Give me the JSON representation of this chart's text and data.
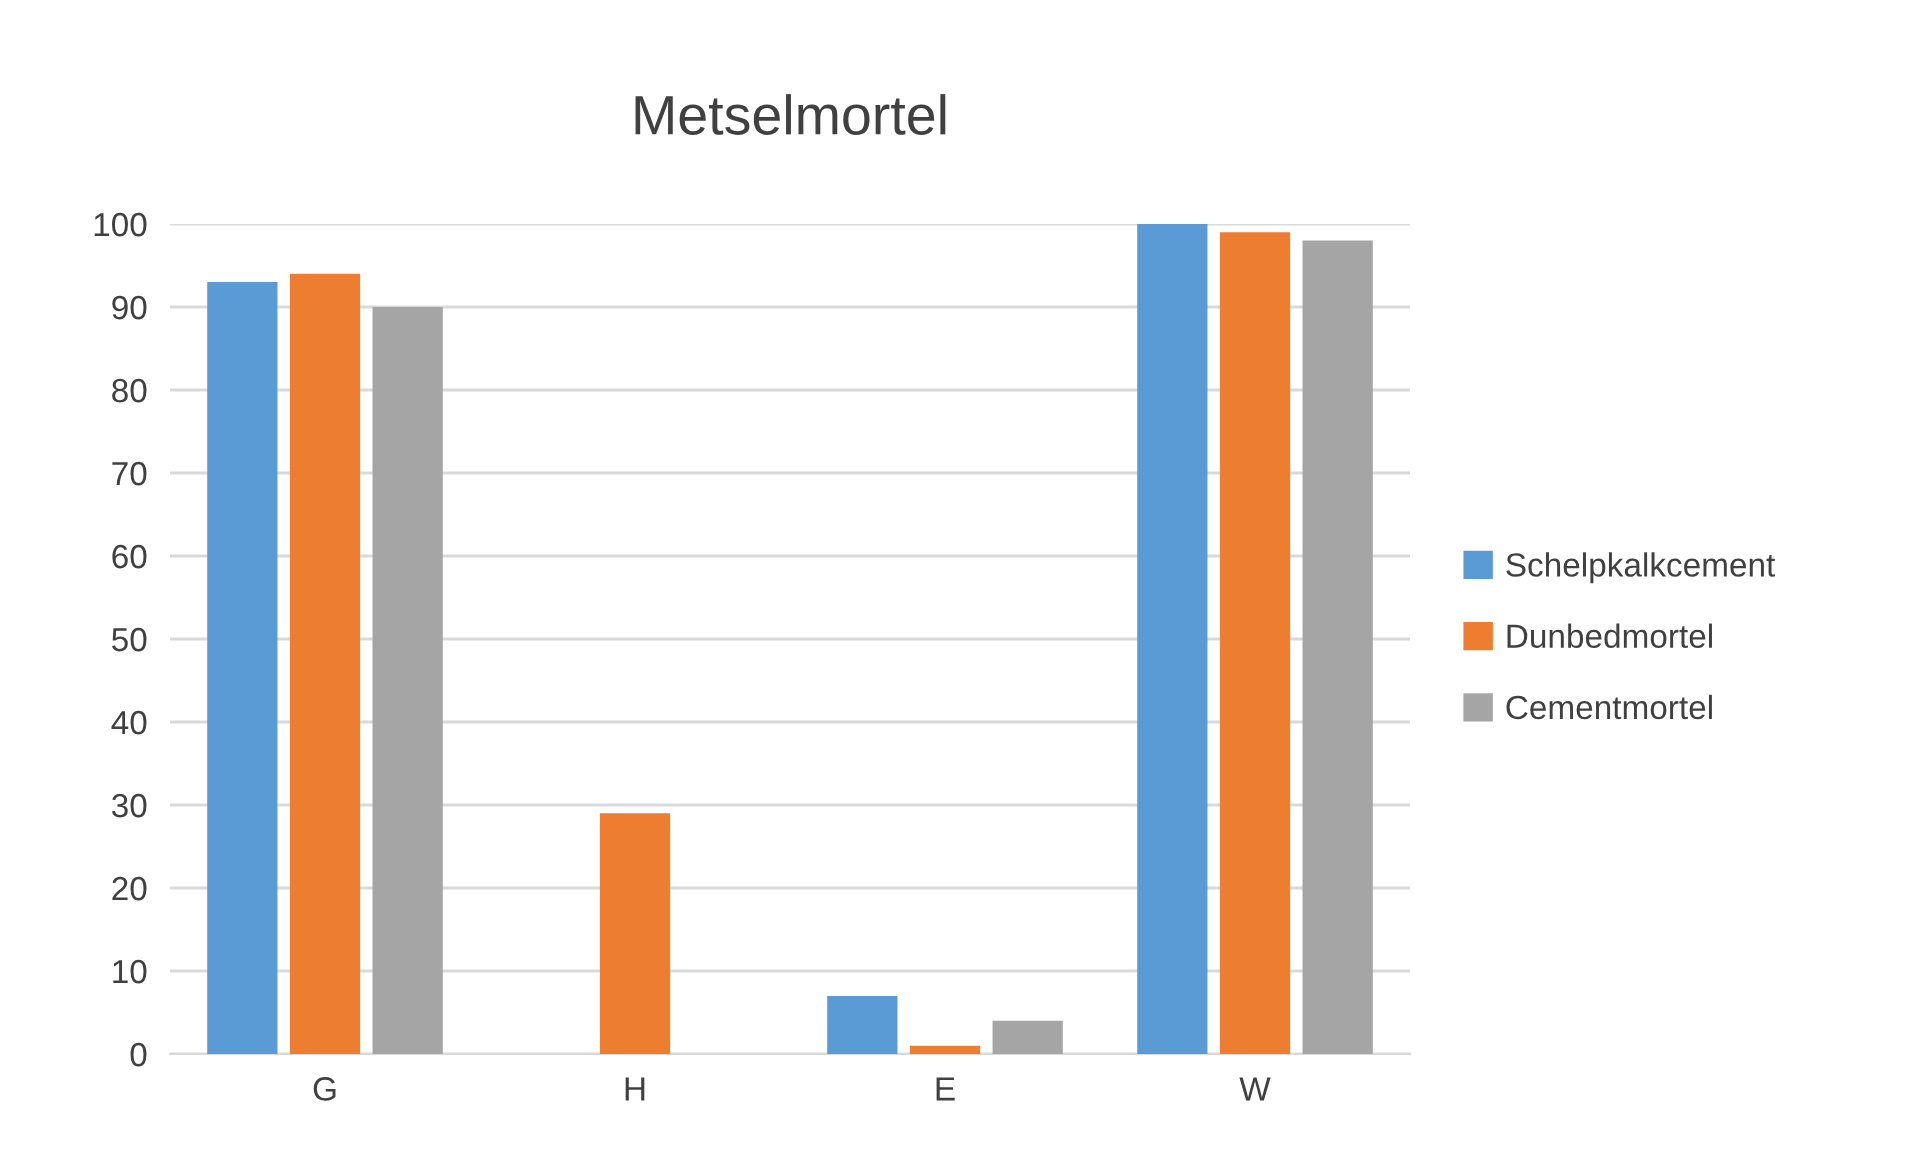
{
  "chart_data": {
    "type": "bar",
    "title": "Metselmortel",
    "categories": [
      "G",
      "H",
      "E",
      "W"
    ],
    "series": [
      {
        "name": "Schelpkalkcement",
        "color": "#5b9bd5",
        "values": [
          93,
          null,
          7,
          100
        ]
      },
      {
        "name": "Dunbedmortel",
        "color": "#ed7d31",
        "values": [
          94,
          29,
          1,
          99
        ]
      },
      {
        "name": "Cementmortel",
        "color": "#a5a5a5",
        "values": [
          90,
          null,
          4,
          98
        ]
      }
    ],
    "ylim": [
      0,
      100
    ],
    "yticks": [
      0,
      10,
      20,
      30,
      40,
      50,
      60,
      70,
      80,
      90,
      100
    ],
    "grid": "y",
    "legend": "right"
  }
}
